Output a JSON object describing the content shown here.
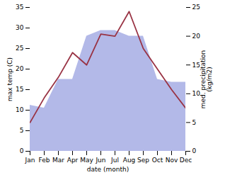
{
  "chart_data": {
    "type": "line",
    "xlabel": "date (month)",
    "ylabel": "max temp (C)",
    "y2label": "med. precipitation\n(kg/m2)",
    "categories": [
      "Jan",
      "Feb",
      "Mar",
      "Apr",
      "May",
      "Jun",
      "Jul",
      "Aug",
      "Sep",
      "Oct",
      "Nov",
      "Dec"
    ],
    "series": [
      {
        "type": "area",
        "axis": "y2",
        "color": "#b3b9e8",
        "values": [
          8,
          7.5,
          12.5,
          12.5,
          20,
          21,
          21,
          20,
          20,
          12.5,
          12,
          12
        ]
      },
      {
        "type": "line",
        "color": "#993344",
        "values": [
          7,
          13,
          18,
          24,
          21,
          28.5,
          28,
          34,
          25,
          20,
          15,
          10.5
        ]
      }
    ],
    "ylim": [
      0,
      35
    ],
    "yticks": [
      0,
      5,
      10,
      15,
      20,
      25,
      30,
      35
    ],
    "y2lim": [
      0,
      25
    ],
    "y2ticks": [
      0,
      5,
      10,
      15,
      20,
      25
    ],
    "grid": false
  }
}
